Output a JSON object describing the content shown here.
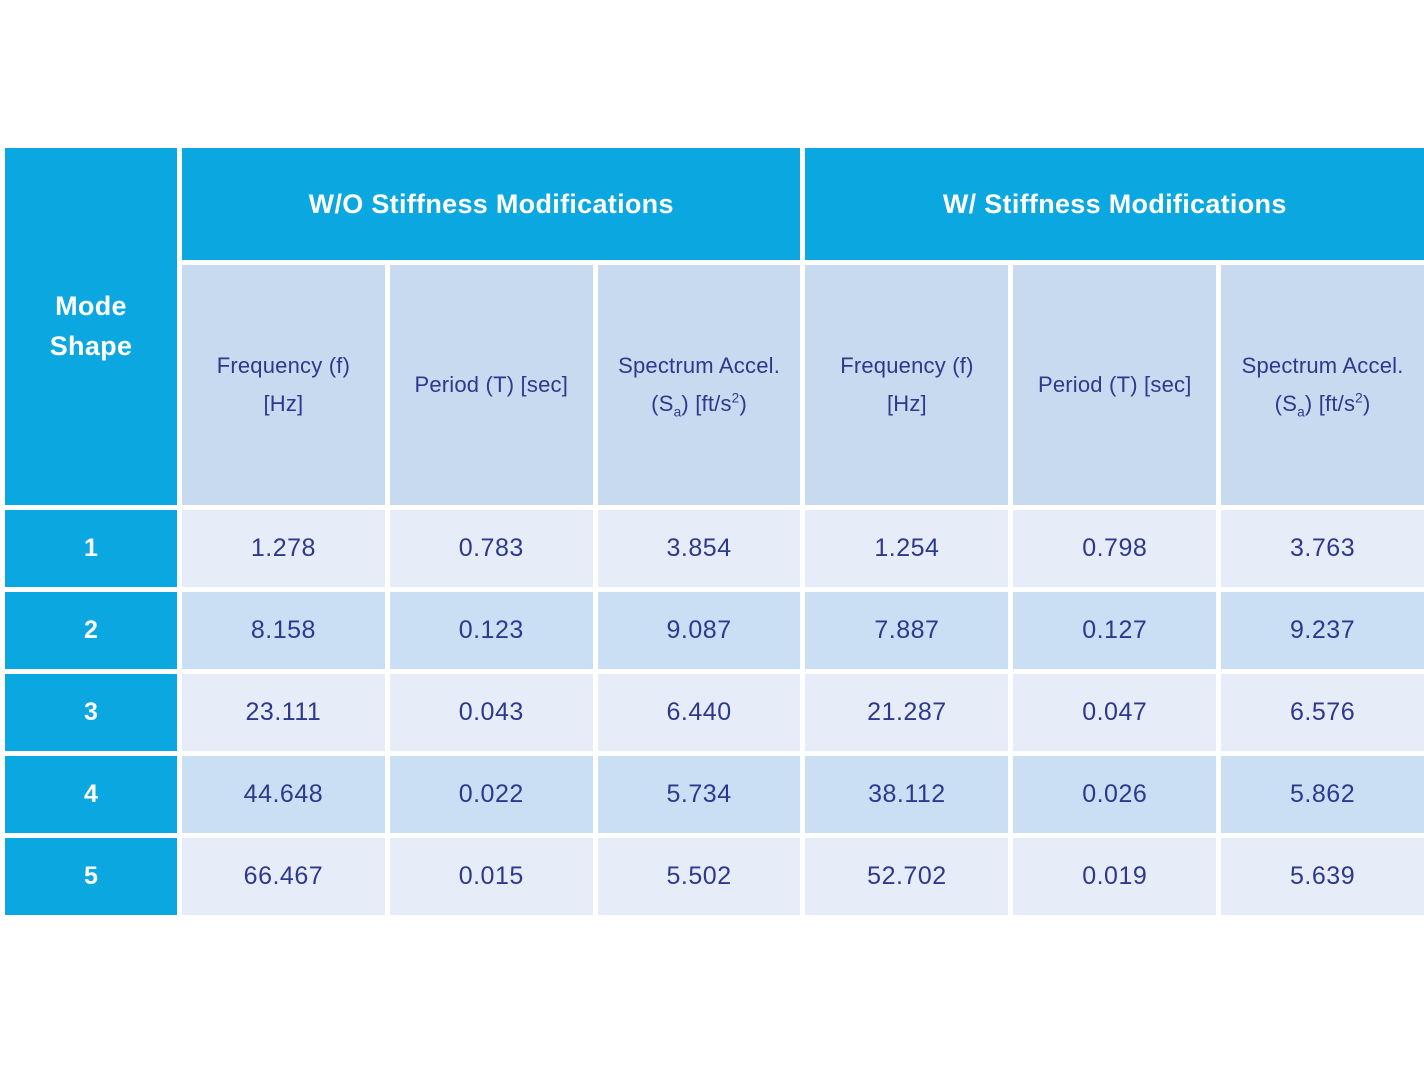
{
  "colors": {
    "accent_cyan": "#0ba7e0",
    "column_header_fill": "#c7daef",
    "row_odd_fill": "#e7edf8",
    "row_even_fill": "#cbdff4",
    "text_navy": "#2d388f",
    "text_white": "#ffffff",
    "background": "#ffffff"
  },
  "chart_data": {
    "type": "table",
    "corner_header": {
      "line1": "Mode",
      "line2": "Shape"
    },
    "column_groups": [
      {
        "label": "W/O Stiffness Modifications",
        "span": 3
      },
      {
        "label": "W/ Stiffness Modifications",
        "span": 3
      }
    ],
    "columns": [
      {
        "line1": "Frequency (f)",
        "line2_pre": "[Hz]",
        "line2_sub": "",
        "line2_mid": "",
        "line2_sup": "",
        "line2_post": ""
      },
      {
        "line1": "Period (T) [sec]",
        "line2_pre": "",
        "line2_sub": "",
        "line2_mid": "",
        "line2_sup": "",
        "line2_post": ""
      },
      {
        "line1": "Spectrum Accel.",
        "line2_pre": "(S",
        "line2_sub": "a",
        "line2_mid": ") [ft/s",
        "line2_sup": "2",
        "line2_post": ")"
      },
      {
        "line1": "Frequency (f)",
        "line2_pre": "[Hz]",
        "line2_sub": "",
        "line2_mid": "",
        "line2_sup": "",
        "line2_post": ""
      },
      {
        "line1": "Period (T) [sec]",
        "line2_pre": "",
        "line2_sub": "",
        "line2_mid": "",
        "line2_sup": "",
        "line2_post": ""
      },
      {
        "line1": "Spectrum Accel.",
        "line2_pre": "(S",
        "line2_sub": "a",
        "line2_mid": ") [ft/s",
        "line2_sup": "2",
        "line2_post": ")"
      }
    ],
    "rows": [
      {
        "mode": "1",
        "values": [
          "1.278",
          "0.783",
          "3.854",
          "1.254",
          "0.798",
          "3.763"
        ]
      },
      {
        "mode": "2",
        "values": [
          "8.158",
          "0.123",
          "9.087",
          "7.887",
          "0.127",
          "9.237"
        ]
      },
      {
        "mode": "3",
        "values": [
          "23.111",
          "0.043",
          "6.440",
          "21.287",
          "0.047",
          "6.576"
        ]
      },
      {
        "mode": "4",
        "values": [
          "44.648",
          "0.022",
          "5.734",
          "38.112",
          "0.026",
          "5.862"
        ]
      },
      {
        "mode": "5",
        "values": [
          "66.467",
          "0.015",
          "5.502",
          "52.702",
          "0.019",
          "5.639"
        ]
      }
    ]
  }
}
